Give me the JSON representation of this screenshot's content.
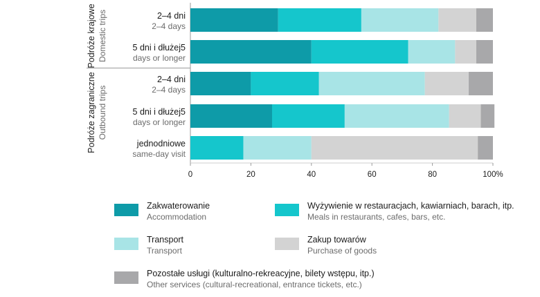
{
  "chart_data": {
    "type": "bar",
    "orientation": "horizontal",
    "stacked": true,
    "xlim": [
      0,
      100
    ],
    "x_ticks": [
      "0",
      "20",
      "40",
      "60",
      "80",
      "100%"
    ],
    "groups": [
      {
        "label_pl": "Podróże krajowe",
        "label_en": "Domestic trips"
      },
      {
        "label_pl": "Podróże zagraniczne",
        "label_en": "Outbound trips"
      }
    ],
    "categories": [
      {
        "pl": "2–4 dni",
        "en": "2–4 days",
        "group": 0
      },
      {
        "pl": "5 dni i dłużej5",
        "en": "days or longer",
        "group": 0
      },
      {
        "pl": "2–4 dni",
        "en": "2–4 days",
        "group": 1
      },
      {
        "pl": "5 dni i dłużej5",
        "en": "days or longer",
        "group": 1
      },
      {
        "pl": "jednodniowe",
        "en": "same-day visit",
        "group": 1
      }
    ],
    "series": [
      {
        "name": "Zakwaterowanie",
        "name_en": "Accommodation",
        "color": "#0e9ba8",
        "values": [
          29,
          40,
          20,
          27,
          0
        ]
      },
      {
        "name": "Wyżywienie w restauracjach, kawiarniach, barach, itp.",
        "name_en": "Meals in restaurants, cafes, bars, etc.",
        "color": "#15c6cc",
        "values": [
          27.5,
          32,
          22.5,
          24,
          17.5
        ]
      },
      {
        "name": "Transport",
        "name_en": "Transport",
        "color": "#a8e4e6",
        "values": [
          25.5,
          15.5,
          35,
          34.5,
          22.5
        ]
      },
      {
        "name": "Zakup towarów",
        "name_en": "Purchase of goods",
        "color": "#d3d3d3",
        "values": [
          12.5,
          7,
          14.5,
          10.5,
          55
        ]
      },
      {
        "name": "Pozostałe usługi (kulturalno-rekreacyjne, bilety wstępu, itp.)",
        "name_en": "Other services (cultural-recreational, entrance tickets, etc.)",
        "color": "#a8a8aa",
        "values": [
          5.5,
          5.5,
          8,
          4.5,
          5
        ]
      }
    ]
  }
}
